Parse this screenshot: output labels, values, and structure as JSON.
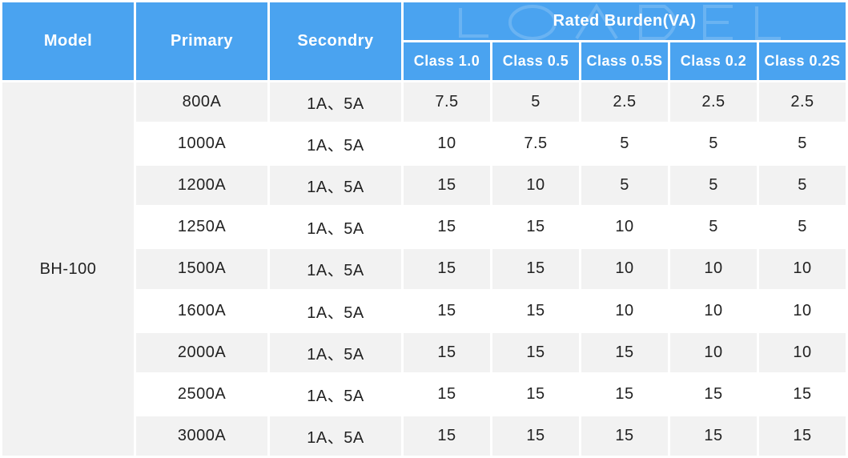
{
  "header": {
    "model": "Model",
    "primary": "Primary",
    "secondary": "Secondry",
    "rated_burden": "Rated Burden(VA)",
    "classes": [
      "Class 1.0",
      "Class 0.5",
      "Class 0.5S",
      "Class 0.2",
      "Class 0.2S"
    ]
  },
  "model_value": "BH-100",
  "rows": [
    {
      "primary": "800A",
      "secondary": "1A、5A",
      "values": [
        "7.5",
        "5",
        "2.5",
        "2.5",
        "2.5"
      ]
    },
    {
      "primary": "1000A",
      "secondary": "1A、5A",
      "values": [
        "10",
        "7.5",
        "5",
        "5",
        "5"
      ]
    },
    {
      "primary": "1200A",
      "secondary": "1A、5A",
      "values": [
        "15",
        "10",
        "5",
        "5",
        "5"
      ]
    },
    {
      "primary": "1250A",
      "secondary": "1A、5A",
      "values": [
        "15",
        "15",
        "10",
        "5",
        "5"
      ]
    },
    {
      "primary": "1500A",
      "secondary": "1A、5A",
      "values": [
        "15",
        "15",
        "10",
        "10",
        "10"
      ]
    },
    {
      "primary": "1600A",
      "secondary": "1A、5A",
      "values": [
        "15",
        "15",
        "10",
        "10",
        "10"
      ]
    },
    {
      "primary": "2000A",
      "secondary": "1A、5A",
      "values": [
        "15",
        "15",
        "15",
        "10",
        "10"
      ]
    },
    {
      "primary": "2500A",
      "secondary": "1A、5A",
      "values": [
        "15",
        "15",
        "15",
        "15",
        "15"
      ]
    },
    {
      "primary": "3000A",
      "secondary": "1A、5A",
      "values": [
        "15",
        "15",
        "15",
        "15",
        "15"
      ]
    }
  ],
  "colors": {
    "header_bg": "#4aa3f0",
    "row_alt_bg": "#f2f2f2",
    "text": "#222222"
  }
}
